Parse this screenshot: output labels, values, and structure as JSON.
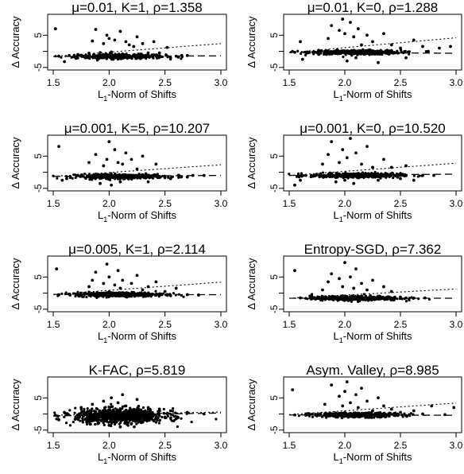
{
  "chart_data": [
    {
      "type": "scatter",
      "title": "μ=0.01, K=1, ρ=1.358",
      "xlabel_main": "L",
      "xlabel_sub": "1",
      "xlabel_rest": "-Norm of Shifts",
      "ylabel": "Δ Accuracy",
      "xlim": [
        1.45,
        3.05
      ],
      "ylim": [
        -5.8,
        11.5
      ],
      "xticks": [
        "1.5",
        "2.0",
        "2.5",
        "3.0"
      ],
      "yticks": [
        "-5",
        "",
        "5"
      ],
      "trend_dotted": {
        "x0": 1.5,
        "y0": -1.6,
        "x1": 3.0,
        "y1": 2.4
      },
      "trend_dashed": {
        "x0": 1.5,
        "y0": -1.6,
        "x1": 3.0,
        "y1": -1.4
      },
      "points": [
        [
          1.52,
          7.0
        ],
        [
          1.55,
          -1.5
        ],
        [
          1.6,
          -3.2
        ],
        [
          1.72,
          -1.0
        ],
        [
          1.82,
          -0.6
        ],
        [
          1.85,
          3.2
        ],
        [
          1.88,
          6.8
        ],
        [
          1.92,
          -0.4
        ],
        [
          1.95,
          2.4
        ],
        [
          1.98,
          5.0
        ],
        [
          2.0,
          4.0
        ],
        [
          2.02,
          -0.2
        ],
        [
          2.05,
          3.5
        ],
        [
          2.08,
          -2.4
        ],
        [
          2.1,
          6.2
        ],
        [
          2.12,
          -0.8
        ],
        [
          2.15,
          3.0
        ],
        [
          2.18,
          2.0
        ],
        [
          2.22,
          1.5
        ],
        [
          2.25,
          4.5
        ],
        [
          2.3,
          2.4
        ],
        [
          2.35,
          -0.5
        ],
        [
          2.4,
          3.0
        ],
        [
          2.45,
          -0.5
        ],
        [
          2.52,
          1.2
        ],
        [
          2.55,
          -2.0
        ],
        [
          2.6,
          -1.5
        ],
        [
          2.62,
          -1.8
        ],
        [
          2.65,
          -1.3
        ],
        [
          2.7,
          -1.3
        ]
      ]
    },
    {
      "type": "scatter",
      "title": "μ=0.01, K=0, ρ=1.288",
      "xlabel_main": "L",
      "xlabel_sub": "1",
      "xlabel_rest": "-Norm of Shifts",
      "ylabel": "Δ Accuracy",
      "xlim": [
        1.45,
        3.05
      ],
      "ylim": [
        -5.8,
        11.5
      ],
      "xticks": [
        "1.5",
        "2.0",
        "2.5",
        "3.0"
      ],
      "yticks": [
        "-5",
        "",
        "5"
      ],
      "trend_dotted": {
        "x0": 1.5,
        "y0": -0.4,
        "x1": 3.0,
        "y1": 4.2
      },
      "trend_dashed": {
        "x0": 1.5,
        "y0": -0.3,
        "x1": 3.0,
        "y1": -0.6
      },
      "points": [
        [
          1.55,
          -0.3
        ],
        [
          1.6,
          3.0
        ],
        [
          1.62,
          -2.5
        ],
        [
          1.75,
          -0.4
        ],
        [
          1.85,
          4.0
        ],
        [
          1.88,
          8.0
        ],
        [
          1.92,
          -0.5
        ],
        [
          1.95,
          6.5
        ],
        [
          1.98,
          10.0
        ],
        [
          2.0,
          5.5
        ],
        [
          2.02,
          -3.0
        ],
        [
          2.05,
          9.0
        ],
        [
          2.08,
          4.5
        ],
        [
          2.1,
          -2.0
        ],
        [
          2.12,
          7.0
        ],
        [
          2.15,
          2.0
        ],
        [
          2.2,
          5.0
        ],
        [
          2.25,
          3.0
        ],
        [
          2.3,
          -3.5
        ],
        [
          2.35,
          5.5
        ],
        [
          2.42,
          2.0
        ],
        [
          2.5,
          1.0
        ],
        [
          2.55,
          -2.0
        ],
        [
          2.62,
          3.5
        ],
        [
          2.7,
          1.5
        ],
        [
          2.75,
          0.0
        ],
        [
          2.85,
          1.0
        ],
        [
          2.95,
          1.5
        ]
      ]
    },
    {
      "type": "scatter",
      "title": "μ=0.001, K=5, ρ=10.207",
      "xlabel_main": "L",
      "xlabel_sub": "1",
      "xlabel_rest": "-Norm of Shifts",
      "ylabel": "Δ Accuracy",
      "xlim": [
        1.45,
        3.05
      ],
      "ylim": [
        -5.8,
        11.5
      ],
      "xticks": [
        "1.5",
        "2.0",
        "2.5",
        "3.0"
      ],
      "yticks": [
        "-5",
        "",
        "5"
      ],
      "trend_dotted": {
        "x0": 1.5,
        "y0": -1.3,
        "x1": 3.0,
        "y1": 2.3
      },
      "trend_dashed": {
        "x0": 1.5,
        "y0": -1.3,
        "x1": 3.0,
        "y1": -1.0
      },
      "points": [
        [
          1.55,
          8.0
        ],
        [
          1.58,
          -2.5
        ],
        [
          1.62,
          -2.0
        ],
        [
          1.72,
          -1.0
        ],
        [
          1.82,
          3.0
        ],
        [
          1.88,
          5.5
        ],
        [
          1.92,
          -3.5
        ],
        [
          1.95,
          2.0
        ],
        [
          1.98,
          4.0
        ],
        [
          2.0,
          9.5
        ],
        [
          2.02,
          -4.0
        ],
        [
          2.05,
          7.0
        ],
        [
          2.08,
          3.0
        ],
        [
          2.1,
          -3.0
        ],
        [
          2.12,
          2.5
        ],
        [
          2.15,
          6.0
        ],
        [
          2.2,
          4.0
        ],
        [
          2.25,
          1.0
        ],
        [
          2.3,
          5.0
        ],
        [
          2.35,
          -3.0
        ],
        [
          2.42,
          2.5
        ],
        [
          2.5,
          -1.5
        ],
        [
          2.55,
          -2.0
        ],
        [
          2.62,
          -1.0
        ],
        [
          2.7,
          -1.5
        ],
        [
          2.75,
          -1.0
        ],
        [
          2.85,
          -1.0
        ]
      ]
    },
    {
      "type": "scatter",
      "title": "μ=0.001, K=0, ρ=10.520",
      "xlabel_main": "L",
      "xlabel_sub": "1",
      "xlabel_rest": "-Norm of Shifts",
      "ylabel": "Δ Accuracy",
      "xlim": [
        1.45,
        3.05
      ],
      "ylim": [
        -5.8,
        11.5
      ],
      "xticks": [
        "1.5",
        "2.0",
        "2.5",
        "3.0"
      ],
      "yticks": [
        "-5",
        "",
        "5"
      ],
      "trend_dotted": {
        "x0": 1.5,
        "y0": -1.0,
        "x1": 3.0,
        "y1": 2.8
      },
      "trend_dashed": {
        "x0": 1.5,
        "y0": -1.0,
        "x1": 3.0,
        "y1": -0.6
      },
      "points": [
        [
          1.55,
          -4.0
        ],
        [
          1.6,
          -2.5
        ],
        [
          1.7,
          -1.0
        ],
        [
          1.8,
          2.5
        ],
        [
          1.85,
          5.5
        ],
        [
          1.88,
          9.5
        ],
        [
          1.92,
          -3.0
        ],
        [
          1.95,
          3.0
        ],
        [
          1.98,
          7.0
        ],
        [
          2.0,
          -2.5
        ],
        [
          2.02,
          4.5
        ],
        [
          2.05,
          10.5
        ],
        [
          2.08,
          -3.5
        ],
        [
          2.1,
          6.0
        ],
        [
          2.15,
          2.5
        ],
        [
          2.2,
          8.0
        ],
        [
          2.25,
          1.5
        ],
        [
          2.3,
          -2.5
        ],
        [
          2.35,
          4.0
        ],
        [
          2.42,
          1.5
        ],
        [
          2.5,
          -2.0
        ],
        [
          2.55,
          2.0
        ],
        [
          2.62,
          -2.5
        ],
        [
          2.7,
          -1.0
        ],
        [
          2.8,
          -1.0
        ]
      ]
    },
    {
      "type": "scatter",
      "title": "μ=0.005, K=1, ρ=2.114",
      "xlabel_main": "L",
      "xlabel_sub": "1",
      "xlabel_rest": "-Norm of Shifts",
      "ylabel": "Δ Accuracy",
      "xlim": [
        1.45,
        3.05
      ],
      "ylim": [
        -5.8,
        11.5
      ],
      "xticks": [
        "1.5",
        "2.0",
        "2.5",
        "3.0"
      ],
      "yticks": [
        "-5",
        "",
        "5"
      ],
      "trend_dotted": {
        "x0": 1.5,
        "y0": -0.4,
        "x1": 3.0,
        "y1": 3.4
      },
      "trend_dashed": {
        "x0": 1.5,
        "y0": -0.4,
        "x1": 3.0,
        "y1": -0.5
      },
      "points": [
        [
          1.53,
          7.5
        ],
        [
          1.55,
          -0.5
        ],
        [
          1.65,
          -0.6
        ],
        [
          1.72,
          -0.3
        ],
        [
          1.82,
          2.0
        ],
        [
          1.85,
          4.0
        ],
        [
          1.88,
          6.5
        ],
        [
          1.92,
          -0.7
        ],
        [
          1.95,
          3.0
        ],
        [
          1.98,
          9.0
        ],
        [
          2.0,
          5.0
        ],
        [
          2.02,
          0.0
        ],
        [
          2.05,
          2.5
        ],
        [
          2.08,
          7.0
        ],
        [
          2.1,
          1.5
        ],
        [
          2.12,
          4.0
        ],
        [
          2.15,
          -0.5
        ],
        [
          2.2,
          3.0
        ],
        [
          2.25,
          5.5
        ],
        [
          2.3,
          1.0
        ],
        [
          2.35,
          2.0
        ],
        [
          2.42,
          3.5
        ],
        [
          2.5,
          0.5
        ],
        [
          2.55,
          -0.8
        ],
        [
          2.6,
          1.5
        ],
        [
          2.7,
          -0.5
        ],
        [
          2.8,
          -0.6
        ]
      ]
    },
    {
      "type": "scatter",
      "title": "Entropy-SGD, ρ=7.362",
      "xlabel_main": "L",
      "xlabel_sub": "1",
      "xlabel_rest": "-Norm of Shifts",
      "ylabel": "Δ Accuracy",
      "xlim": [
        1.45,
        3.05
      ],
      "ylim": [
        -5.8,
        11.5
      ],
      "xticks": [
        "1.5",
        "2.0",
        "2.5",
        "3.0"
      ],
      "yticks": [
        "-5",
        "",
        "5"
      ],
      "trend_dotted": {
        "x0": 1.5,
        "y0": -1.6,
        "x1": 3.0,
        "y1": 1.3
      },
      "trend_dashed": {
        "x0": 1.5,
        "y0": -1.6,
        "x1": 3.0,
        "y1": -1.6
      },
      "points": [
        [
          1.55,
          7.0
        ],
        [
          1.6,
          -1.5
        ],
        [
          1.7,
          -1.8
        ],
        [
          1.8,
          1.0
        ],
        [
          1.85,
          3.5
        ],
        [
          1.88,
          6.0
        ],
        [
          1.92,
          -1.5
        ],
        [
          1.95,
          4.5
        ],
        [
          1.98,
          2.0
        ],
        [
          2.0,
          9.5
        ],
        [
          2.02,
          -1.2
        ],
        [
          2.05,
          5.0
        ],
        [
          2.08,
          1.5
        ],
        [
          2.1,
          7.5
        ],
        [
          2.12,
          -1.0
        ],
        [
          2.15,
          3.0
        ],
        [
          2.2,
          1.0
        ],
        [
          2.25,
          4.0
        ],
        [
          2.3,
          -1.0
        ],
        [
          2.35,
          2.0
        ],
        [
          2.42,
          0.5
        ],
        [
          2.5,
          -1.2
        ],
        [
          2.55,
          -1.5
        ],
        [
          2.62,
          -1.5
        ],
        [
          2.72,
          -1.5
        ]
      ]
    },
    {
      "type": "scatter",
      "title": "K-FAC, ρ=5.819",
      "xlabel_main": "L",
      "xlabel_sub": "1",
      "xlabel_rest": "-Norm of Shifts",
      "ylabel": "Δ Accuracy",
      "xlim": [
        1.45,
        3.05
      ],
      "ylim": [
        -5.8,
        11.5
      ],
      "xticks": [
        "1.5",
        "2.0",
        "2.5",
        "3.0"
      ],
      "yticks": [
        "-5",
        "",
        "5"
      ],
      "trend_dotted": {
        "x0": 1.5,
        "y0": -0.4,
        "x1": 3.0,
        "y1": 0.6
      },
      "trend_dashed": {
        "x0": 1.5,
        "y0": -0.6,
        "x1": 3.0,
        "y1": 0.3
      },
      "points": [
        [
          1.52,
          -0.4
        ],
        [
          1.6,
          0.5
        ],
        [
          1.7,
          -1.5
        ],
        [
          1.75,
          2.0
        ],
        [
          1.8,
          -2.5
        ],
        [
          1.85,
          3.0
        ],
        [
          1.9,
          -3.0
        ],
        [
          1.95,
          4.0
        ],
        [
          2.0,
          -3.5
        ],
        [
          2.02,
          5.0
        ],
        [
          2.05,
          -2.0
        ],
        [
          2.08,
          3.5
        ],
        [
          2.1,
          -4.0
        ],
        [
          2.12,
          6.0
        ],
        [
          2.15,
          2.5
        ],
        [
          2.2,
          -3.0
        ],
        [
          2.25,
          4.5
        ],
        [
          2.3,
          -2.5
        ],
        [
          2.35,
          2.0
        ],
        [
          2.4,
          -2.0
        ],
        [
          2.45,
          1.5
        ],
        [
          2.5,
          -1.0
        ],
        [
          2.55,
          1.0
        ],
        [
          2.6,
          -1.5
        ],
        [
          2.7,
          0.5
        ],
        [
          2.85,
          0.0
        ]
      ]
    },
    {
      "type": "scatter",
      "title": "Asym. Valley, ρ=8.985",
      "xlabel_main": "L",
      "xlabel_sub": "1",
      "xlabel_rest": "-Norm of Shifts",
      "ylabel": "Δ Accuracy",
      "xlim": [
        1.45,
        3.05
      ],
      "ylim": [
        -5.8,
        11.5
      ],
      "xticks": [
        "1.5",
        "2.0",
        "2.5",
        "3.0"
      ],
      "yticks": [
        "-5",
        "",
        "5"
      ],
      "trend_dotted": {
        "x0": 1.5,
        "y0": -0.2,
        "x1": 3.0,
        "y1": 3.4
      },
      "trend_dashed": {
        "x0": 1.5,
        "y0": -0.3,
        "x1": 3.0,
        "y1": -0.4
      },
      "points": [
        [
          1.53,
          7.5
        ],
        [
          1.55,
          -0.3
        ],
        [
          1.65,
          -0.4
        ],
        [
          1.75,
          -0.2
        ],
        [
          1.82,
          3.0
        ],
        [
          1.88,
          9.0
        ],
        [
          1.92,
          -0.4
        ],
        [
          1.95,
          5.5
        ],
        [
          1.98,
          2.5
        ],
        [
          2.0,
          7.0
        ],
        [
          2.02,
          10.0
        ],
        [
          2.05,
          3.5
        ],
        [
          2.08,
          -0.3
        ],
        [
          2.1,
          6.0
        ],
        [
          2.12,
          2.0
        ],
        [
          2.15,
          8.0
        ],
        [
          2.2,
          4.0
        ],
        [
          2.25,
          1.0
        ],
        [
          2.3,
          5.0
        ],
        [
          2.35,
          2.5
        ],
        [
          2.42,
          1.5
        ],
        [
          2.5,
          0.5
        ],
        [
          2.55,
          -0.5
        ],
        [
          2.62,
          1.0
        ],
        [
          2.7,
          0.0
        ],
        [
          2.78,
          2.5
        ],
        [
          2.9,
          -0.2
        ],
        [
          2.98,
          2.0
        ]
      ]
    }
  ]
}
